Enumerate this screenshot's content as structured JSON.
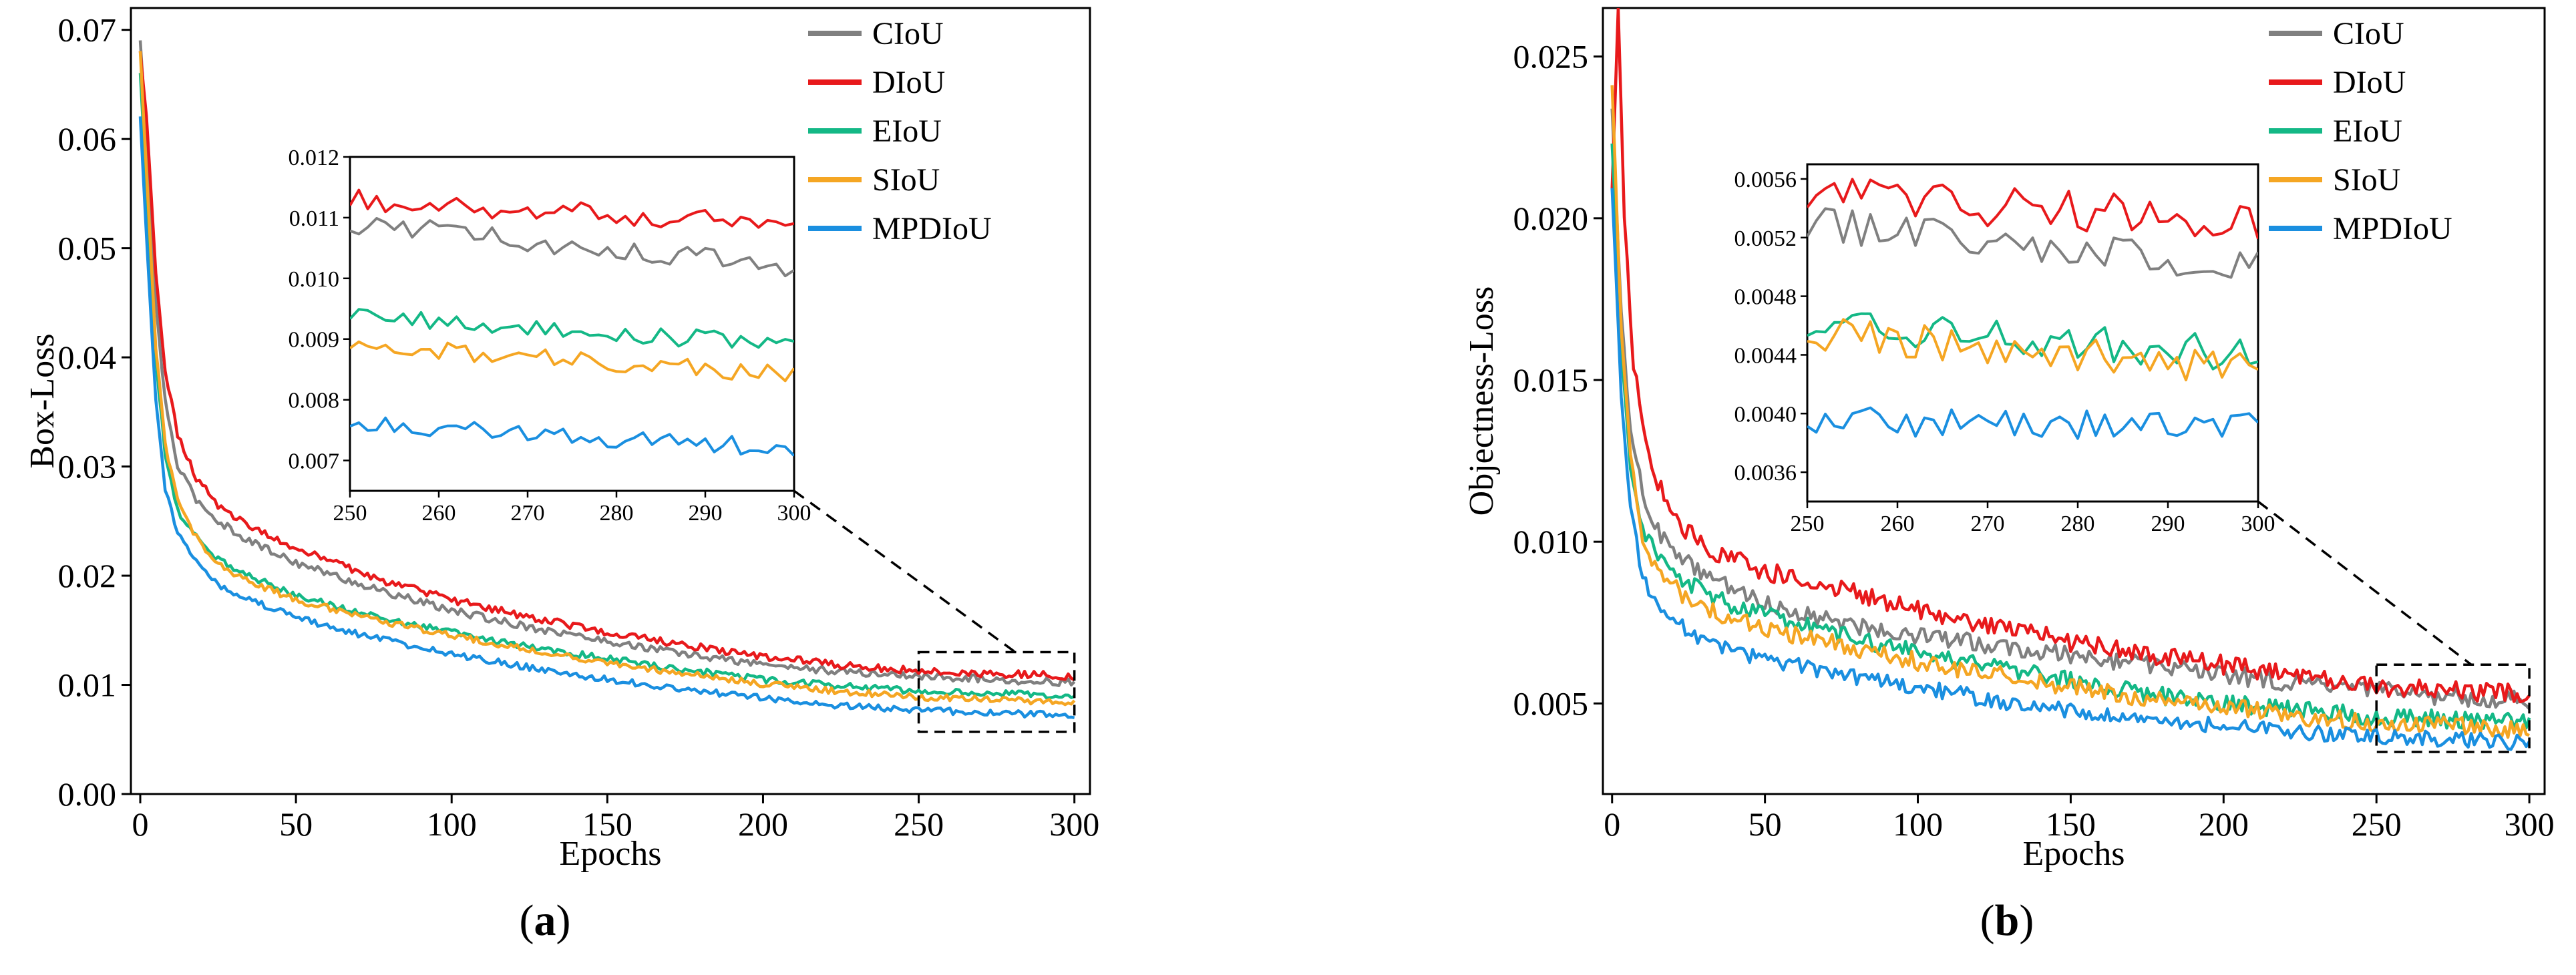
{
  "chart_data": [
    {
      "type": "line",
      "panel": "a",
      "panel_label": {
        "open": "(",
        "letter": "a",
        "close": ")"
      },
      "title": "",
      "xlabel": "Epochs",
      "ylabel": "Box-Loss",
      "xlim": [
        -3,
        305
      ],
      "ylim": [
        0,
        0.072
      ],
      "xticks": [
        0,
        50,
        100,
        150,
        200,
        250,
        300
      ],
      "xtick_labels": [
        "0",
        "50",
        "100",
        "150",
        "200",
        "250",
        "300"
      ],
      "yticks": [
        0,
        0.01,
        0.02,
        0.03,
        0.04,
        0.05,
        0.06,
        0.07
      ],
      "ytick_labels": [
        "0.00",
        "0.01",
        "0.02",
        "0.03",
        "0.04",
        "0.05",
        "0.06",
        "0.07"
      ],
      "legend_position": "top-right",
      "series": [
        {
          "name": "CIoU",
          "color": "#808080",
          "points": [
            [
              0,
              0.069
            ],
            [
              2,
              0.06
            ],
            [
              5,
              0.045
            ],
            [
              8,
              0.036
            ],
            [
              12,
              0.03
            ],
            [
              18,
              0.027
            ],
            [
              25,
              0.025
            ],
            [
              35,
              0.0232
            ],
            [
              50,
              0.0212
            ],
            [
              75,
              0.0188
            ],
            [
              100,
              0.0168
            ],
            [
              125,
              0.0153
            ],
            [
              150,
              0.014
            ],
            [
              175,
              0.0128
            ],
            [
              200,
              0.0119
            ],
            [
              225,
              0.0112
            ],
            [
              250,
              0.0108
            ],
            [
              275,
              0.0105
            ],
            [
              300,
              0.0102
            ]
          ],
          "noise": 0.00035
        },
        {
          "name": "DIoU",
          "color": "#e8191b",
          "points": [
            [
              0,
              0.068
            ],
            [
              2,
              0.062
            ],
            [
              5,
              0.048
            ],
            [
              8,
              0.039
            ],
            [
              12,
              0.033
            ],
            [
              18,
              0.029
            ],
            [
              25,
              0.0265
            ],
            [
              35,
              0.0245
            ],
            [
              50,
              0.0225
            ],
            [
              75,
              0.0198
            ],
            [
              100,
              0.0178
            ],
            [
              125,
              0.0162
            ],
            [
              150,
              0.0148
            ],
            [
              175,
              0.0136
            ],
            [
              200,
              0.0126
            ],
            [
              225,
              0.0118
            ],
            [
              250,
              0.0113
            ],
            [
              275,
              0.011
            ],
            [
              300,
              0.0108
            ]
          ],
          "noise": 0.00035
        },
        {
          "name": "EIoU",
          "color": "#14b886",
          "points": [
            [
              0,
              0.066
            ],
            [
              2,
              0.056
            ],
            [
              5,
              0.04
            ],
            [
              8,
              0.031
            ],
            [
              12,
              0.026
            ],
            [
              18,
              0.0235
            ],
            [
              25,
              0.0215
            ],
            [
              35,
              0.02
            ],
            [
              50,
              0.0182
            ],
            [
              75,
              0.0163
            ],
            [
              100,
              0.0148
            ],
            [
              125,
              0.0135
            ],
            [
              150,
              0.0124
            ],
            [
              175,
              0.0114
            ],
            [
              200,
              0.0105
            ],
            [
              225,
              0.0099
            ],
            [
              250,
              0.0094
            ],
            [
              275,
              0.0092
            ],
            [
              300,
              0.009
            ]
          ],
          "noise": 0.0003
        },
        {
          "name": "SIoU",
          "color": "#f5a623",
          "points": [
            [
              0,
              0.068
            ],
            [
              2,
              0.057
            ],
            [
              5,
              0.041
            ],
            [
              8,
              0.032
            ],
            [
              12,
              0.027
            ],
            [
              18,
              0.0235
            ],
            [
              25,
              0.021
            ],
            [
              35,
              0.0195
            ],
            [
              50,
              0.0178
            ],
            [
              75,
              0.016
            ],
            [
              100,
              0.0145
            ],
            [
              125,
              0.0132
            ],
            [
              150,
              0.012
            ],
            [
              175,
              0.011
            ],
            [
              200,
              0.0101
            ],
            [
              225,
              0.0094
            ],
            [
              250,
              0.0089
            ],
            [
              275,
              0.0086
            ],
            [
              300,
              0.0084
            ]
          ],
          "noise": 0.0003
        },
        {
          "name": "MPDIoU",
          "color": "#1a8fe0",
          "points": [
            [
              0,
              0.062
            ],
            [
              2,
              0.051
            ],
            [
              5,
              0.036
            ],
            [
              8,
              0.028
            ],
            [
              12,
              0.024
            ],
            [
              18,
              0.0212
            ],
            [
              25,
              0.0192
            ],
            [
              35,
              0.0178
            ],
            [
              50,
              0.0162
            ],
            [
              75,
              0.0143
            ],
            [
              100,
              0.0128
            ],
            [
              125,
              0.0116
            ],
            [
              150,
              0.0105
            ],
            [
              175,
              0.0096
            ],
            [
              200,
              0.0088
            ],
            [
              225,
              0.0081
            ],
            [
              250,
              0.0077
            ],
            [
              275,
              0.0074
            ],
            [
              300,
              0.0072
            ]
          ],
          "noise": 0.0003
        }
      ],
      "zoom_box": {
        "x": [
          250,
          300
        ],
        "y": [
          0.0057,
          0.013
        ]
      },
      "inset": {
        "xlim": [
          250,
          300
        ],
        "ylim": [
          0.0065,
          0.012
        ],
        "xticks": [
          250,
          260,
          270,
          280,
          290,
          300
        ],
        "xtick_labels": [
          "250",
          "260",
          "270",
          "280",
          "290",
          "300"
        ],
        "yticks": [
          0.007,
          0.008,
          0.009,
          0.01,
          0.011,
          0.012
        ],
        "ytick_labels": [
          "0.007",
          "0.008",
          "0.009",
          "0.010",
          "0.011",
          "0.012"
        ],
        "series": [
          {
            "name": "CIoU",
            "color": "#808080",
            "start": 0.0109,
            "end": 0.0102,
            "noise": 0.00018
          },
          {
            "name": "DIoU",
            "color": "#e8191b",
            "start": 0.0113,
            "end": 0.0109,
            "noise": 0.00018
          },
          {
            "name": "EIoU",
            "color": "#14b886",
            "start": 0.0094,
            "end": 0.0089,
            "noise": 0.00015
          },
          {
            "name": "SIoU",
            "color": "#f5a623",
            "start": 0.0089,
            "end": 0.0084,
            "noise": 0.00015
          },
          {
            "name": "MPDIoU",
            "color": "#1a8fe0",
            "start": 0.0076,
            "end": 0.0072,
            "noise": 0.00015
          }
        ]
      }
    },
    {
      "type": "line",
      "panel": "b",
      "panel_label": {
        "open": "(",
        "letter": "b",
        "close": ")"
      },
      "title": "",
      "xlabel": "Epochs",
      "ylabel": "Objectness-Loss",
      "xlim": [
        -3,
        305
      ],
      "ylim": [
        0.0022,
        0.0265
      ],
      "xticks": [
        0,
        50,
        100,
        150,
        200,
        250,
        300
      ],
      "xtick_labels": [
        "0",
        "50",
        "100",
        "150",
        "200",
        "250",
        "300"
      ],
      "yticks": [
        0.005,
        0.01,
        0.015,
        0.02,
        0.025
      ],
      "ytick_labels": [
        "0.005",
        "0.010",
        "0.015",
        "0.020",
        "0.025"
      ],
      "legend_position": "top-right",
      "series": [
        {
          "name": "CIoU",
          "color": "#808080",
          "points": [
            [
              0,
              0.0235
            ],
            [
              3,
              0.017
            ],
            [
              6,
              0.0135
            ],
            [
              10,
              0.0115
            ],
            [
              15,
              0.0103
            ],
            [
              25,
              0.0093
            ],
            [
              40,
              0.0085
            ],
            [
              60,
              0.0078
            ],
            [
              80,
              0.0074
            ],
            [
              100,
              0.0071
            ],
            [
              125,
              0.0068
            ],
            [
              150,
              0.0065
            ],
            [
              175,
              0.0062
            ],
            [
              200,
              0.0059
            ],
            [
              225,
              0.0056
            ],
            [
              250,
              0.0054
            ],
            [
              275,
              0.0052
            ],
            [
              300,
              0.0051
            ]
          ],
          "noise": 0.00028
        },
        {
          "name": "DIoU",
          "color": "#e8191b",
          "points": [
            [
              0,
              0.021
            ],
            [
              2,
              0.0265
            ],
            [
              4,
              0.02
            ],
            [
              7,
              0.0155
            ],
            [
              12,
              0.0125
            ],
            [
              15,
              0.0118
            ],
            [
              20,
              0.0108
            ],
            [
              30,
              0.0098
            ],
            [
              50,
              0.0091
            ],
            [
              75,
              0.0085
            ],
            [
              100,
              0.0079
            ],
            [
              125,
              0.0074
            ],
            [
              150,
              0.0069
            ],
            [
              175,
              0.0065
            ],
            [
              200,
              0.0062
            ],
            [
              225,
              0.0058
            ],
            [
              250,
              0.0055
            ],
            [
              275,
              0.0054
            ],
            [
              300,
              0.0053
            ]
          ],
          "noise": 0.0003
        },
        {
          "name": "EIoU",
          "color": "#14b886",
          "points": [
            [
              0,
              0.0224
            ],
            [
              3,
              0.016
            ],
            [
              6,
              0.0125
            ],
            [
              10,
              0.0105
            ],
            [
              15,
              0.0095
            ],
            [
              25,
              0.0087
            ],
            [
              40,
              0.008
            ],
            [
              60,
              0.0075
            ],
            [
              80,
              0.007
            ],
            [
              100,
              0.0066
            ],
            [
              125,
              0.0061
            ],
            [
              150,
              0.0057
            ],
            [
              175,
              0.0053
            ],
            [
              200,
              0.005
            ],
            [
              225,
              0.0048
            ],
            [
              250,
              0.0046
            ],
            [
              275,
              0.0045
            ],
            [
              300,
              0.0044
            ]
          ],
          "noise": 0.00028
        },
        {
          "name": "SIoU",
          "color": "#f5a623",
          "points": [
            [
              0,
              0.0242
            ],
            [
              3,
              0.0165
            ],
            [
              6,
              0.0125
            ],
            [
              10,
              0.01
            ],
            [
              15,
              0.0091
            ],
            [
              25,
              0.0082
            ],
            [
              40,
              0.0076
            ],
            [
              60,
              0.0071
            ],
            [
              80,
              0.0067
            ],
            [
              100,
              0.0063
            ],
            [
              125,
              0.0059
            ],
            [
              150,
              0.0055
            ],
            [
              175,
              0.0051
            ],
            [
              200,
              0.0049
            ],
            [
              225,
              0.0046
            ],
            [
              250,
              0.0044
            ],
            [
              275,
              0.0043
            ],
            [
              300,
              0.0042
            ]
          ],
          "noise": 0.00028
        },
        {
          "name": "MPDIoU",
          "color": "#1a8fe0",
          "points": [
            [
              0,
              0.021
            ],
            [
              3,
              0.0145
            ],
            [
              6,
              0.011
            ],
            [
              10,
              0.0089
            ],
            [
              15,
              0.0079
            ],
            [
              25,
              0.0072
            ],
            [
              40,
              0.0066
            ],
            [
              60,
              0.0062
            ],
            [
              80,
              0.0058
            ],
            [
              100,
              0.0055
            ],
            [
              125,
              0.0051
            ],
            [
              150,
              0.0048
            ],
            [
              175,
              0.0045
            ],
            [
              200,
              0.0043
            ],
            [
              225,
              0.0041
            ],
            [
              250,
              0.004
            ],
            [
              275,
              0.0039
            ],
            [
              300,
              0.0038
            ]
          ],
          "noise": 0.00025
        }
      ],
      "zoom_box": {
        "x": [
          250,
          300
        ],
        "y": [
          0.0035,
          0.0062
        ]
      },
      "inset": {
        "xlim": [
          250,
          300
        ],
        "ylim": [
          0.0034,
          0.0057
        ],
        "xticks": [
          250,
          260,
          270,
          280,
          290,
          300
        ],
        "xtick_labels": [
          "250",
          "260",
          "270",
          "280",
          "290",
          "300"
        ],
        "yticks": [
          0.0036,
          0.004,
          0.0044,
          0.0048,
          0.0052,
          0.0056
        ],
        "ytick_labels": [
          "0.0036",
          "0.0040",
          "0.0044",
          "0.0048",
          "0.0052",
          "0.0056"
        ],
        "series": [
          {
            "name": "CIoU",
            "color": "#808080",
            "start": 0.0053,
            "end": 0.005,
            "noise": 0.00012
          },
          {
            "name": "DIoU",
            "color": "#e8191b",
            "start": 0.0055,
            "end": 0.0053,
            "noise": 0.00014
          },
          {
            "name": "EIoU",
            "color": "#14b886",
            "start": 0.0046,
            "end": 0.0044,
            "noise": 0.00012
          },
          {
            "name": "SIoU",
            "color": "#f5a623",
            "start": 0.00455,
            "end": 0.0043,
            "noise": 0.00012
          },
          {
            "name": "MPDIoU",
            "color": "#1a8fe0",
            "start": 0.00395,
            "end": 0.0039,
            "noise": 0.0001
          }
        ]
      }
    }
  ]
}
